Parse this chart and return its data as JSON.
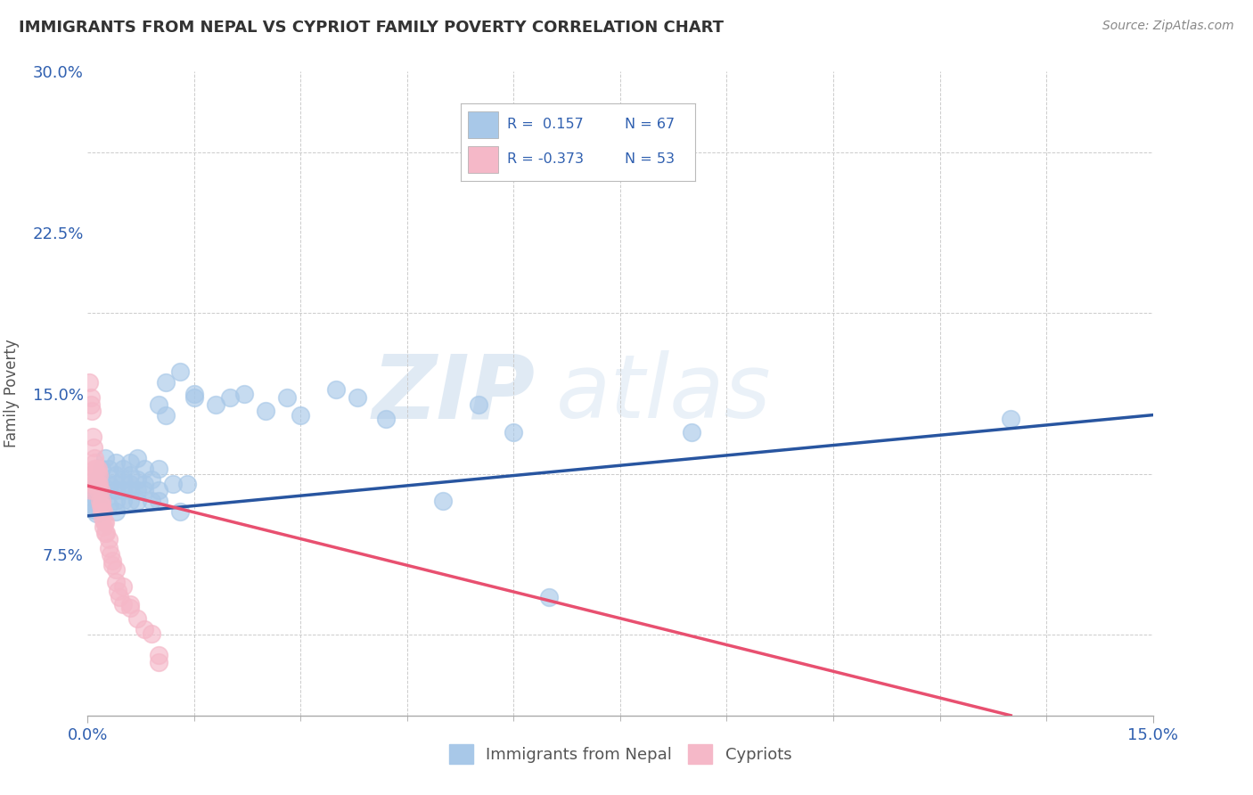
{
  "title": "IMMIGRANTS FROM NEPAL VS CYPRIOT FAMILY POVERTY CORRELATION CHART",
  "source_text": "Source: ZipAtlas.com",
  "ylabel": "Family Poverty",
  "legend_labels": [
    "Immigrants from Nepal",
    "Cypriots"
  ],
  "xlim": [
    0.0,
    0.15
  ],
  "ylim": [
    0.0,
    0.3
  ],
  "blue_color": "#A8C8E8",
  "pink_color": "#F5B8C8",
  "blue_line_color": "#2855A0",
  "pink_line_color": "#E85070",
  "blue_r_text": "R =  0.157",
  "pink_r_text": "R = -0.373",
  "blue_n_text": "N = 67",
  "pink_n_text": "N = 53",
  "watermark_zip": "ZIP",
  "watermark_atlas": "atlas",
  "nepal_scatter": [
    [
      0.0005,
      0.1
    ],
    [
      0.0008,
      0.098
    ],
    [
      0.001,
      0.096
    ],
    [
      0.001,
      0.102
    ],
    [
      0.0012,
      0.094
    ],
    [
      0.0015,
      0.11
    ],
    [
      0.0015,
      0.098
    ],
    [
      0.002,
      0.105
    ],
    [
      0.002,
      0.1
    ],
    [
      0.002,
      0.115
    ],
    [
      0.002,
      0.095
    ],
    [
      0.0025,
      0.12
    ],
    [
      0.003,
      0.108
    ],
    [
      0.003,
      0.105
    ],
    [
      0.003,
      0.115
    ],
    [
      0.003,
      0.098
    ],
    [
      0.004,
      0.112
    ],
    [
      0.004,
      0.105
    ],
    [
      0.004,
      0.1
    ],
    [
      0.004,
      0.108
    ],
    [
      0.004,
      0.118
    ],
    [
      0.004,
      0.095
    ],
    [
      0.005,
      0.11
    ],
    [
      0.005,
      0.105
    ],
    [
      0.005,
      0.115
    ],
    [
      0.005,
      0.1
    ],
    [
      0.006,
      0.105
    ],
    [
      0.006,
      0.112
    ],
    [
      0.006,
      0.118
    ],
    [
      0.006,
      0.1
    ],
    [
      0.006,
      0.108
    ],
    [
      0.007,
      0.105
    ],
    [
      0.007,
      0.11
    ],
    [
      0.007,
      0.12
    ],
    [
      0.007,
      0.1
    ],
    [
      0.008,
      0.108
    ],
    [
      0.008,
      0.115
    ],
    [
      0.008,
      0.105
    ],
    [
      0.009,
      0.11
    ],
    [
      0.009,
      0.1
    ],
    [
      0.01,
      0.105
    ],
    [
      0.01,
      0.115
    ],
    [
      0.01,
      0.145
    ],
    [
      0.01,
      0.1
    ],
    [
      0.011,
      0.14
    ],
    [
      0.011,
      0.155
    ],
    [
      0.012,
      0.108
    ],
    [
      0.013,
      0.095
    ],
    [
      0.013,
      0.16
    ],
    [
      0.014,
      0.108
    ],
    [
      0.015,
      0.15
    ],
    [
      0.015,
      0.148
    ],
    [
      0.018,
      0.145
    ],
    [
      0.02,
      0.148
    ],
    [
      0.022,
      0.15
    ],
    [
      0.025,
      0.142
    ],
    [
      0.028,
      0.148
    ],
    [
      0.03,
      0.14
    ],
    [
      0.035,
      0.152
    ],
    [
      0.038,
      0.148
    ],
    [
      0.042,
      0.138
    ],
    [
      0.05,
      0.1
    ],
    [
      0.055,
      0.145
    ],
    [
      0.06,
      0.132
    ],
    [
      0.065,
      0.055
    ],
    [
      0.085,
      0.132
    ],
    [
      0.13,
      0.138
    ]
  ],
  "cyprus_scatter": [
    [
      0.0002,
      0.155
    ],
    [
      0.0004,
      0.148
    ],
    [
      0.0005,
      0.145
    ],
    [
      0.0005,
      0.105
    ],
    [
      0.0006,
      0.142
    ],
    [
      0.0007,
      0.13
    ],
    [
      0.0007,
      0.112
    ],
    [
      0.0008,
      0.125
    ],
    [
      0.0008,
      0.108
    ],
    [
      0.0009,
      0.12
    ],
    [
      0.0009,
      0.115
    ],
    [
      0.001,
      0.118
    ],
    [
      0.001,
      0.11
    ],
    [
      0.001,
      0.105
    ],
    [
      0.0012,
      0.115
    ],
    [
      0.0012,
      0.108
    ],
    [
      0.0013,
      0.112
    ],
    [
      0.0014,
      0.108
    ],
    [
      0.0015,
      0.115
    ],
    [
      0.0015,
      0.105
    ],
    [
      0.0016,
      0.112
    ],
    [
      0.0016,
      0.108
    ],
    [
      0.0017,
      0.1
    ],
    [
      0.0018,
      0.105
    ],
    [
      0.0018,
      0.098
    ],
    [
      0.0019,
      0.1
    ],
    [
      0.002,
      0.098
    ],
    [
      0.002,
      0.095
    ],
    [
      0.0021,
      0.092
    ],
    [
      0.0022,
      0.095
    ],
    [
      0.0022,
      0.088
    ],
    [
      0.0023,
      0.09
    ],
    [
      0.0024,
      0.085
    ],
    [
      0.0025,
      0.09
    ],
    [
      0.0026,
      0.085
    ],
    [
      0.003,
      0.082
    ],
    [
      0.003,
      0.078
    ],
    [
      0.0032,
      0.075
    ],
    [
      0.0034,
      0.072
    ],
    [
      0.0035,
      0.07
    ],
    [
      0.004,
      0.068
    ],
    [
      0.004,
      0.062
    ],
    [
      0.0042,
      0.058
    ],
    [
      0.0045,
      0.055
    ],
    [
      0.005,
      0.052
    ],
    [
      0.005,
      0.06
    ],
    [
      0.006,
      0.05
    ],
    [
      0.006,
      0.052
    ],
    [
      0.007,
      0.045
    ],
    [
      0.008,
      0.04
    ],
    [
      0.009,
      0.038
    ],
    [
      0.01,
      0.025
    ],
    [
      0.01,
      0.028
    ]
  ],
  "blue_line_x": [
    0.0,
    0.15
  ],
  "blue_line_y": [
    0.093,
    0.14
  ],
  "pink_line_x": [
    0.0,
    0.13
  ],
  "pink_line_y": [
    0.107,
    0.0
  ]
}
